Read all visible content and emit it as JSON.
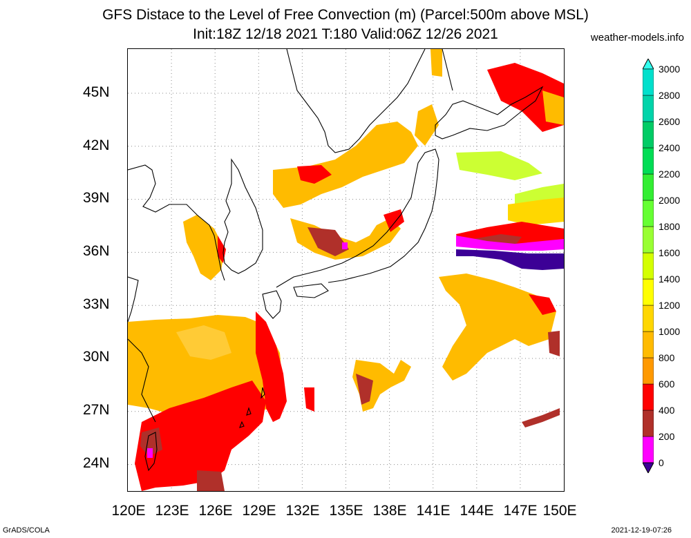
{
  "header": {
    "title": "GFS Distace to the Level of Free Convection (m) (Parcel:500m above MSL)",
    "subtitle": "Init:18Z 12/18 2021 T:180 Valid:06Z 12/26 2021",
    "site": "weather-models.info"
  },
  "map": {
    "lat_labels": [
      "45N",
      "42N",
      "39N",
      "36N",
      "33N",
      "30N",
      "27N",
      "24N"
    ],
    "lon_labels": [
      "120E",
      "123E",
      "126E",
      "129E",
      "132E",
      "135E",
      "138E",
      "141E",
      "144E",
      "147E",
      "150E"
    ],
    "lon_range": [
      120,
      150
    ],
    "lat_range": [
      22.5,
      47.5
    ]
  },
  "colorbar": {
    "levels": [
      "0",
      "200",
      "400",
      "600",
      "800",
      "1000",
      "1200",
      "1400",
      "1600",
      "1800",
      "2000",
      "2200",
      "2400",
      "2600",
      "2800",
      "3000"
    ],
    "colors": [
      "#3c0096",
      "#ff00ff",
      "#b0302a",
      "#ff0000",
      "#ff9900",
      "#ffbb00",
      "#ffd700",
      "#ffff00",
      "#d4ff00",
      "#99ff33",
      "#66ff33",
      "#33ee33",
      "#00dd55",
      "#00cc66",
      "#00d4aa",
      "#00e0cc",
      "#33ffee"
    ]
  },
  "footer": {
    "left": "GrADS/COLA",
    "right": "2021-12-19-07:26"
  }
}
